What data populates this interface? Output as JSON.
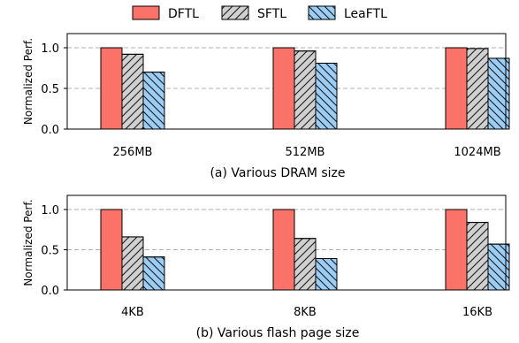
{
  "legend": {
    "position": "top-center",
    "entries": [
      {
        "label": "DFTL",
        "color": "#fa7268",
        "pattern": "solid"
      },
      {
        "label": "SFTL",
        "color": "#d0d0d0",
        "pattern": "forward-hatch"
      },
      {
        "label": "LeaFTL",
        "color": "#9ccdf5",
        "pattern": "back-hatch"
      }
    ]
  },
  "chart_data": [
    {
      "type": "bar",
      "title": "(a) Various DRAM size",
      "xlabel": "",
      "ylabel": "Normalized Perf.",
      "ylim": [
        0,
        1.0
      ],
      "yticks": [
        "0.0",
        "0.5",
        "1.0"
      ],
      "grid": "horizontal dashed",
      "categories": [
        "256MB",
        "512MB",
        "1024MB"
      ],
      "series": [
        {
          "name": "DFTL",
          "values": [
            1.0,
            1.0,
            1.0
          ]
        },
        {
          "name": "SFTL",
          "values": [
            0.92,
            0.96,
            0.99
          ]
        },
        {
          "name": "LeaFTL",
          "values": [
            0.7,
            0.81,
            0.87
          ]
        }
      ]
    },
    {
      "type": "bar",
      "title": "(b) Various flash page size",
      "xlabel": "",
      "ylabel": "Normalized Perf.",
      "ylim": [
        0,
        1.0
      ],
      "yticks": [
        "0.0",
        "0.5",
        "1.0"
      ],
      "grid": "horizontal dashed",
      "categories": [
        "4KB",
        "8KB",
        "16KB"
      ],
      "series": [
        {
          "name": "DFTL",
          "values": [
            1.0,
            1.0,
            1.0
          ]
        },
        {
          "name": "SFTL",
          "values": [
            0.66,
            0.64,
            0.84
          ]
        },
        {
          "name": "LeaFTL",
          "values": [
            0.41,
            0.39,
            0.57
          ]
        }
      ]
    }
  ]
}
